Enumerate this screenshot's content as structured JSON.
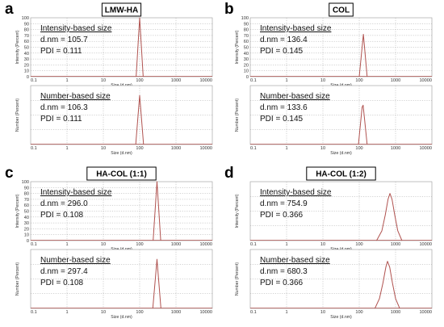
{
  "axes": {
    "xlabel": "Size (d.nm)",
    "ylabel_intensity": "Intensity (Percent)",
    "ylabel_number": "Number (Percent)",
    "x_ticks": [
      "0.1",
      "1",
      "10",
      "100",
      "1000",
      "10000"
    ],
    "y_ticks": [
      "0",
      "10",
      "20",
      "30",
      "40",
      "50",
      "60",
      "70",
      "80",
      "90",
      "100"
    ]
  },
  "annotations": {
    "intensity_title": "Intensity-based size",
    "number_title": "Number-based size"
  },
  "colors": {
    "series": "#b0524f",
    "grid": "#9a9a9a"
  },
  "panels": [
    {
      "letter": "a",
      "sample": "LMW-HA",
      "intensity": {
        "dnm": "d.nm = 105.7",
        "pdi": "PDI = 0.111"
      },
      "number": {
        "dnm": "d.nm = 106.3",
        "pdi": "PDI = 0.111"
      }
    },
    {
      "letter": "b",
      "sample": "COL",
      "intensity": {
        "dnm": "d.nm = 136.4",
        "pdi": "PDI = 0.145"
      },
      "number": {
        "dnm": "d.nm = 133.6",
        "pdi": "PDI = 0.145"
      }
    },
    {
      "letter": "c",
      "sample": "HA-COL (1:1)",
      "intensity": {
        "dnm": "d.nm = 296.0",
        "pdi": "PDI = 0.108"
      },
      "number": {
        "dnm": "d.nm = 297.4",
        "pdi": "PDI = 0.108"
      }
    },
    {
      "letter": "d",
      "sample": "HA-COL (1:2)",
      "intensity": {
        "dnm": "d.nm = 754.9",
        "pdi": "PDI = 0.366"
      },
      "number": {
        "dnm": "d.nm = 680.3",
        "pdi": "PDI = 0.366"
      }
    }
  ],
  "chart_data": [
    {
      "type": "line",
      "panel": "a",
      "sample": "LMW-HA",
      "distribution": "intensity",
      "x_scale": "log",
      "xlim": [
        0.1,
        10000
      ],
      "ylim": [
        0,
        100
      ],
      "grid": true,
      "peak_x": 100,
      "peak_y": 100,
      "x": [
        80,
        100,
        125
      ],
      "y": [
        0,
        100,
        0
      ]
    },
    {
      "type": "line",
      "panel": "a",
      "sample": "LMW-HA",
      "distribution": "number",
      "x_scale": "log",
      "xlim": [
        0.1,
        10000
      ],
      "ylim": [
        0,
        60
      ],
      "grid": true,
      "peak_x": 100,
      "peak_y": 50,
      "x": [
        78,
        100,
        128
      ],
      "y": [
        0,
        50,
        0
      ]
    },
    {
      "type": "line",
      "panel": "b",
      "sample": "COL",
      "distribution": "intensity",
      "x_scale": "log",
      "xlim": [
        0.1,
        10000
      ],
      "ylim": [
        0,
        100
      ],
      "grid": true,
      "peak_x": 130,
      "peak_y": 72,
      "x": [
        100,
        130,
        165
      ],
      "y": [
        0,
        72,
        0
      ]
    },
    {
      "type": "line",
      "panel": "b",
      "sample": "COL",
      "distribution": "number",
      "x_scale": "log",
      "xlim": [
        0.1,
        10000
      ],
      "ylim": [
        0,
        60
      ],
      "grid": true,
      "peak_x": 128,
      "peak_y": 40,
      "x": [
        95,
        120,
        128,
        165
      ],
      "y": [
        0,
        38,
        40,
        0
      ]
    },
    {
      "type": "line",
      "panel": "c",
      "sample": "HA-COL (1:1)",
      "distribution": "intensity",
      "x_scale": "log",
      "xlim": [
        0.1,
        10000
      ],
      "ylim": [
        0,
        100
      ],
      "grid": true,
      "peak_x": 300,
      "peak_y": 100,
      "x": [
        235,
        300,
        380
      ],
      "y": [
        0,
        100,
        0
      ]
    },
    {
      "type": "line",
      "panel": "c",
      "sample": "HA-COL (1:1)",
      "distribution": "number",
      "x_scale": "log",
      "xlim": [
        0.1,
        10000
      ],
      "ylim": [
        0,
        60
      ],
      "grid": true,
      "peak_x": 300,
      "peak_y": 50,
      "x": [
        230,
        300,
        385
      ],
      "y": [
        0,
        50,
        0
      ]
    },
    {
      "type": "line",
      "panel": "d",
      "sample": "HA-COL (1:2)",
      "distribution": "intensity",
      "x_scale": "log",
      "xlim": [
        0.1,
        10000
      ],
      "ylim": [
        0,
        30
      ],
      "grid": true,
      "peak_x": 700,
      "peak_y": 24,
      "x": [
        300,
        420,
        520,
        620,
        700,
        800,
        950,
        1150,
        1500
      ],
      "y": [
        0,
        5,
        13,
        21,
        24,
        21,
        13,
        5,
        0
      ]
    },
    {
      "type": "line",
      "panel": "d",
      "sample": "HA-COL (1:2)",
      "distribution": "number",
      "x_scale": "log",
      "xlim": [
        0.1,
        10000
      ],
      "ylim": [
        0,
        30
      ],
      "grid": true,
      "peak_x": 600,
      "peak_y": 24,
      "x": [
        270,
        360,
        450,
        540,
        600,
        690,
        820,
        1000,
        1300
      ],
      "y": [
        0,
        5,
        13,
        21,
        24,
        21,
        13,
        5,
        0
      ]
    }
  ]
}
